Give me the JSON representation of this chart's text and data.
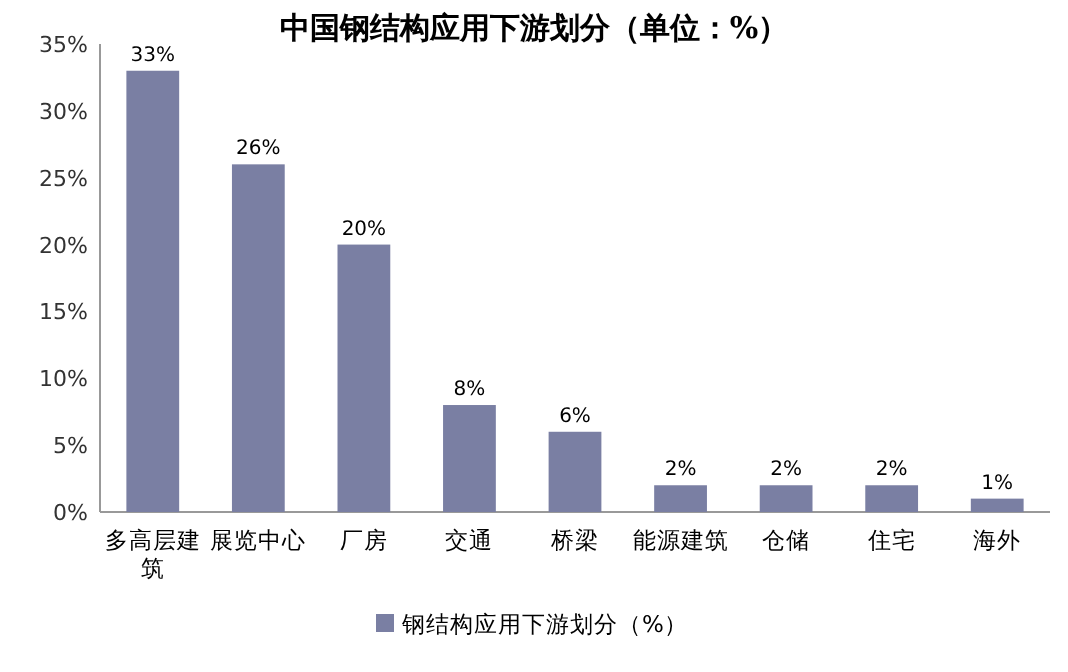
{
  "chart_data": {
    "type": "bar",
    "title": "中国钢结构应用下游划分（单位：%）",
    "categories": [
      "多高层建筑",
      "展览中心",
      "厂房",
      "交通",
      "桥梁",
      "能源建筑",
      "仓储",
      "住宅",
      "海外"
    ],
    "series": [
      {
        "name": "钢结构应用下游划分（%）",
        "color": "#7a7fa3",
        "values": [
          33,
          26,
          20,
          8,
          6,
          2,
          2,
          2,
          1
        ],
        "value_labels": [
          "33%",
          "26%",
          "20%",
          "8%",
          "6%",
          "2%",
          "2%",
          "2%",
          "1%"
        ]
      }
    ],
    "ylim": [
      0,
      35
    ],
    "yticks": [
      {
        "value": 0,
        "label": "0%"
      },
      {
        "value": 5,
        "label": "5%"
      },
      {
        "value": 10,
        "label": "10%"
      },
      {
        "value": 15,
        "label": "15%"
      },
      {
        "value": 20,
        "label": "20%"
      },
      {
        "value": 25,
        "label": "25%"
      },
      {
        "value": 30,
        "label": "30%"
      },
      {
        "value": 35,
        "label": "35%"
      }
    ],
    "legend": "bottom"
  }
}
